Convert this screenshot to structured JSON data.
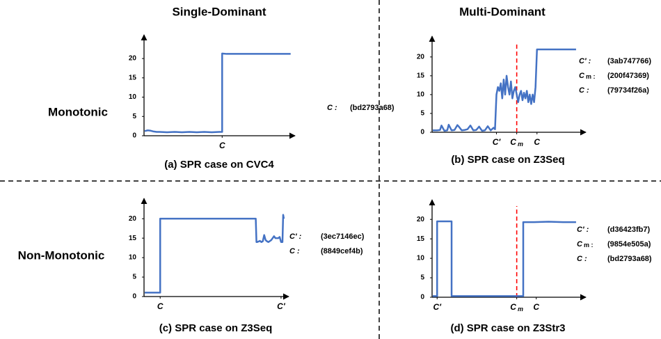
{
  "column_headers": [
    "Single-Dominant",
    "Multi-Dominant"
  ],
  "row_headers": [
    "Monotonic",
    "Non-Monotonic"
  ],
  "chart_data": [
    {
      "type": "line",
      "caption": "(a) SPR case on CVC4",
      "color": "#4472c4",
      "dashed_marker_color": "#ff0000",
      "x": [
        0,
        2,
        4,
        6,
        8,
        10,
        15,
        20,
        25,
        30,
        35,
        40,
        45,
        50,
        52,
        52,
        55,
        60,
        70,
        80,
        90,
        98
      ],
      "values": [
        1.2,
        1.4,
        1.3,
        1.1,
        1.0,
        1.0,
        0.9,
        1.0,
        0.9,
        1.0,
        0.9,
        1.0,
        0.9,
        1.0,
        1.0,
        21.3,
        21.2,
        21.2,
        21.2,
        21.2,
        21.2,
        21.2
      ],
      "xlim": [
        0,
        100
      ],
      "ylim": [
        0,
        22
      ],
      "yticks": [
        0,
        5,
        10,
        15,
        20
      ],
      "xticks": [
        {
          "value": 52,
          "label": "C"
        }
      ],
      "commits": [
        {
          "symbol": "C :",
          "hash": "(bd2793a68)"
        }
      ]
    },
    {
      "type": "line",
      "caption": "(b) SPR case on Z3Seq",
      "color": "#4472c4",
      "dashed_marker_color": "#ff0000",
      "x": [
        0,
        3,
        5,
        6,
        8,
        10,
        11,
        13,
        15,
        17,
        18,
        20,
        22,
        24,
        26,
        28,
        30,
        32,
        34,
        36,
        38,
        40,
        42,
        43,
        44,
        45,
        46,
        47,
        48,
        49,
        50,
        51,
        52,
        53,
        54,
        55,
        56,
        57,
        58,
        59,
        60,
        61,
        62,
        63,
        64,
        65,
        66,
        67,
        68,
        69,
        70,
        71,
        72,
        80,
        90,
        99
      ],
      "values": [
        0.5,
        0.5,
        0.6,
        1.8,
        0.4,
        0.5,
        2.0,
        0.5,
        0.6,
        1.9,
        1.5,
        0.5,
        0.6,
        0.8,
        1.8,
        0.5,
        0.6,
        1.5,
        0.4,
        0.5,
        1.6,
        0.5,
        1.2,
        0.8,
        10,
        12,
        11,
        13,
        9,
        14,
        10,
        15,
        12,
        10,
        13.5,
        9,
        11,
        12,
        10,
        8,
        10,
        11,
        8.5,
        10.5,
        9,
        11,
        8,
        10,
        7.5,
        10,
        8,
        12,
        22,
        22,
        22,
        22
      ],
      "xlim": [
        0,
        100
      ],
      "ylim": [
        0,
        22
      ],
      "yticks": [
        0,
        5,
        10,
        15,
        20
      ],
      "xticks": [
        {
          "value": 44,
          "label": "C′"
        },
        {
          "value": 58,
          "label": "C",
          "subscript": "m",
          "dashed": true
        },
        {
          "value": 72,
          "label": "C"
        }
      ],
      "commits": [
        {
          "symbol": "C′ :",
          "hash": "(3ab747766)"
        },
        {
          "symbol": "C",
          "subscript": "m :",
          "hash": "(200f47369)"
        },
        {
          "symbol": "C :",
          "hash": "(79734f26a)"
        }
      ]
    },
    {
      "type": "line",
      "caption": "(c) SPR case on Z3Seq",
      "color": "#4472c4",
      "dashed_marker_color": "#ff0000",
      "x": [
        0,
        10,
        11,
        11,
        40,
        70,
        79,
        79.5,
        80,
        82,
        83,
        84,
        85,
        86,
        87,
        88,
        90,
        92,
        93,
        95,
        96,
        97,
        98,
        98.5,
        99
      ],
      "values": [
        1,
        1,
        1,
        20,
        20,
        20,
        20,
        14,
        14,
        14.3,
        14,
        14.2,
        15.8,
        14.5,
        14.2,
        14,
        14.5,
        15.5,
        15,
        15,
        15.3,
        14,
        14,
        21,
        20
      ],
      "xlim": [
        0,
        100
      ],
      "ylim": [
        0,
        22
      ],
      "yticks": [
        0,
        5,
        10,
        15,
        20
      ],
      "xticks": [
        {
          "value": 11,
          "label": "C"
        },
        {
          "value": 97,
          "label": "C′"
        }
      ],
      "commits": [
        {
          "symbol": "C′ :",
          "hash": "(3ec7146ec)"
        },
        {
          "symbol": "C :",
          "hash": "(8849cef4b)"
        }
      ]
    },
    {
      "type": "line",
      "caption": "(d) SPR case on Z3Str3",
      "color": "#4472c4",
      "dashed_marker_color": "#ff0000",
      "x": [
        0,
        3,
        3,
        8,
        13,
        13,
        30,
        50,
        62.5,
        62.5,
        70,
        80,
        90,
        99
      ],
      "values": [
        0.3,
        0.3,
        19.5,
        19.5,
        19.5,
        0.3,
        0.3,
        0.3,
        0.3,
        19.3,
        19.3,
        19.4,
        19.3,
        19.3
      ],
      "xlim": [
        0,
        100
      ],
      "ylim": [
        0,
        22
      ],
      "yticks": [
        0,
        5,
        10,
        15,
        20
      ],
      "xticks": [
        {
          "value": 3,
          "label": "C′"
        },
        {
          "value": 58,
          "label": "C",
          "subscript": "m",
          "dashed": true
        },
        {
          "value": 71.5,
          "label": "C"
        }
      ],
      "commits": [
        {
          "symbol": "C′ :",
          "hash": "(d36423fb7)"
        },
        {
          "symbol": "C",
          "subscript": "m :",
          "hash": "(9854e505a)"
        },
        {
          "symbol": "C :",
          "hash": "(bd2793a68)"
        }
      ]
    }
  ]
}
